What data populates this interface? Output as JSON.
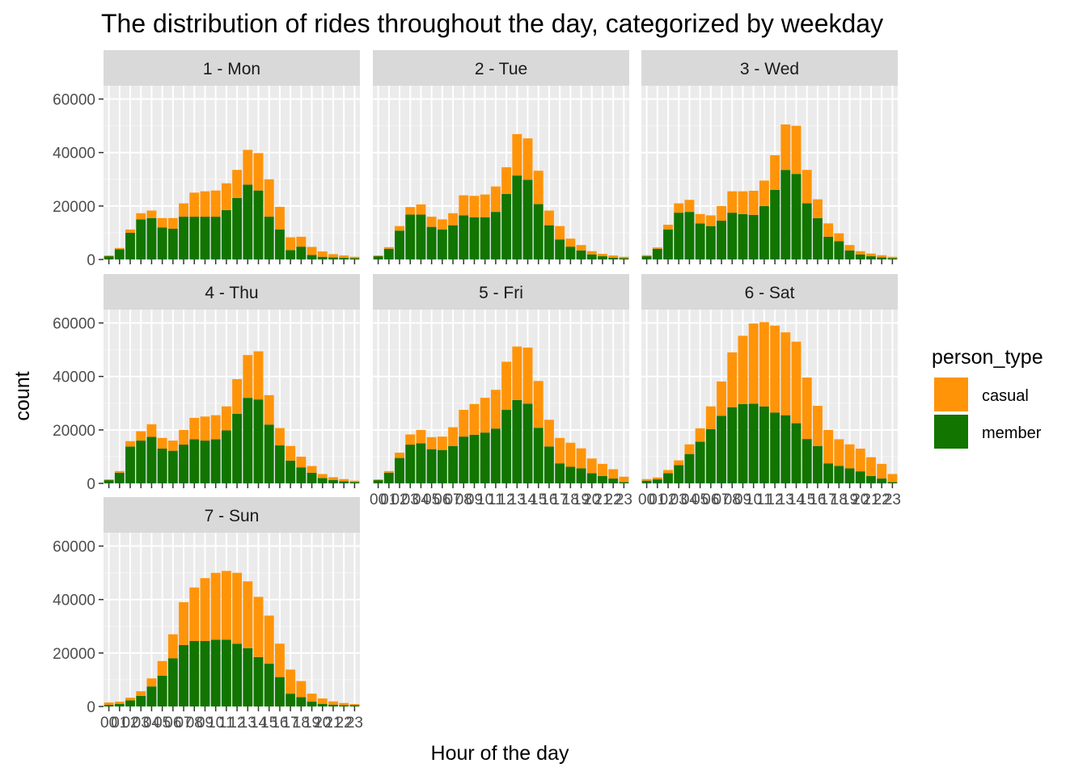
{
  "chart_data": {
    "type": "bar",
    "stacked": true,
    "title": "The distribution of rides throughout the day, categorized by weekday",
    "xlabel": "Hour of the day",
    "ylabel": "count",
    "ylim": [
      0,
      65000
    ],
    "yticks": [
      0,
      20000,
      40000,
      60000
    ],
    "ytick_labels": [
      "0",
      "20000",
      "40000",
      "60000"
    ],
    "categories": [
      "00",
      "01",
      "02",
      "03",
      "04",
      "05",
      "06",
      "07",
      "08",
      "09",
      "10",
      "11",
      "12",
      "13",
      "14",
      "15",
      "16",
      "17",
      "18",
      "19",
      "20",
      "21",
      "22",
      "23"
    ],
    "legend": {
      "title": "person_type",
      "position": "right",
      "entries": [
        {
          "name": "casual",
          "color": "#FF9409"
        },
        {
          "name": "member",
          "color": "#117500"
        }
      ]
    },
    "grid": true,
    "facet_layout": {
      "ncol": 3,
      "nrow": 3
    },
    "panels": [
      {
        "label": "1 - Mon",
        "casual": [
          300,
          500,
          1200,
          2300,
          2800,
          3500,
          4000,
          5000,
          9000,
          9500,
          9800,
          10000,
          10500,
          13000,
          14000,
          14000,
          8500,
          4800,
          3700,
          3000,
          2000,
          1200,
          900,
          500
        ],
        "member": [
          1200,
          3800,
          10000,
          15000,
          15500,
          12000,
          11500,
          16000,
          16000,
          16000,
          16000,
          18500,
          23000,
          28000,
          25800,
          16000,
          11200,
          3500,
          4800,
          1700,
          1000,
          800,
          600,
          500
        ]
      },
      {
        "label": "2 - Tue",
        "casual": [
          300,
          600,
          1700,
          2800,
          3800,
          3800,
          3800,
          4500,
          7500,
          8000,
          8500,
          9500,
          10000,
          15500,
          15500,
          12500,
          5500,
          5000,
          3000,
          2000,
          1200,
          900,
          800,
          500
        ],
        "member": [
          1200,
          4000,
          10800,
          16800,
          16800,
          12200,
          11200,
          12800,
          16500,
          15800,
          15800,
          17800,
          24500,
          31400,
          29800,
          20700,
          12800,
          7500,
          4800,
          3400,
          1900,
          1200,
          700,
          500
        ]
      },
      {
        "label": "3 - Wed",
        "casual": [
          400,
          500,
          1800,
          3500,
          4500,
          3500,
          4000,
          5500,
          8000,
          8500,
          9000,
          9500,
          13000,
          17000,
          18000,
          12500,
          7000,
          5000,
          3000,
          2000,
          1200,
          1000,
          800,
          500
        ],
        "member": [
          1200,
          4000,
          11200,
          17500,
          17800,
          13500,
          12500,
          14500,
          17500,
          17000,
          16700,
          20000,
          26000,
          33500,
          32000,
          21000,
          15500,
          8500,
          6800,
          3400,
          1900,
          1200,
          800,
          500
        ]
      },
      {
        "label": "4 - Thu",
        "casual": [
          300,
          600,
          2000,
          3500,
          4700,
          4000,
          3800,
          5500,
          8000,
          9000,
          9000,
          9000,
          13000,
          16000,
          18000,
          11000,
          6500,
          5500,
          4000,
          2500,
          1500,
          1000,
          800,
          500
        ],
        "member": [
          1200,
          4000,
          13800,
          16000,
          17400,
          13000,
          12200,
          14500,
          16500,
          16000,
          16500,
          19800,
          26000,
          32000,
          31400,
          22000,
          14200,
          8500,
          6000,
          4000,
          2000,
          1300,
          800,
          500
        ]
      },
      {
        "label": "5 - Fri",
        "casual": [
          300,
          600,
          2000,
          3800,
          5000,
          4500,
          5000,
          7000,
          10000,
          11500,
          13000,
          14500,
          18000,
          20000,
          21000,
          17500,
          10000,
          9500,
          9000,
          7500,
          5500,
          4500,
          3500,
          2000
        ],
        "member": [
          1200,
          4000,
          9500,
          14500,
          15000,
          12800,
          12500,
          14000,
          17500,
          18200,
          19000,
          20500,
          27500,
          31200,
          29800,
          20800,
          13800,
          7500,
          6200,
          5600,
          3800,
          2800,
          1800,
          500
        ]
      },
      {
        "label": "6 - Sat",
        "casual": [
          600,
          700,
          1200,
          1800,
          3600,
          5000,
          8500,
          12800,
          20500,
          25500,
          30000,
          31500,
          32500,
          31000,
          30500,
          23000,
          15000,
          12500,
          10000,
          9000,
          8500,
          7000,
          5500,
          3000
        ],
        "member": [
          1000,
          1500,
          3800,
          6800,
          11000,
          15600,
          20300,
          25300,
          28500,
          29700,
          29800,
          28800,
          26500,
          25500,
          22500,
          16600,
          14000,
          7500,
          6500,
          5600,
          4500,
          2800,
          1800,
          500
        ]
      },
      {
        "label": "7 - Sun",
        "casual": [
          900,
          800,
          1000,
          1700,
          3000,
          5500,
          9000,
          16000,
          20000,
          23500,
          25000,
          25700,
          26500,
          25000,
          22500,
          18000,
          12500,
          9000,
          6000,
          3000,
          2000,
          1200,
          800,
          400
        ],
        "member": [
          600,
          1000,
          2300,
          4000,
          7500,
          11500,
          18000,
          23000,
          24500,
          24500,
          25000,
          25000,
          23500,
          21800,
          18500,
          16000,
          11000,
          4800,
          3500,
          1800,
          1000,
          700,
          500,
          500
        ]
      }
    ]
  }
}
